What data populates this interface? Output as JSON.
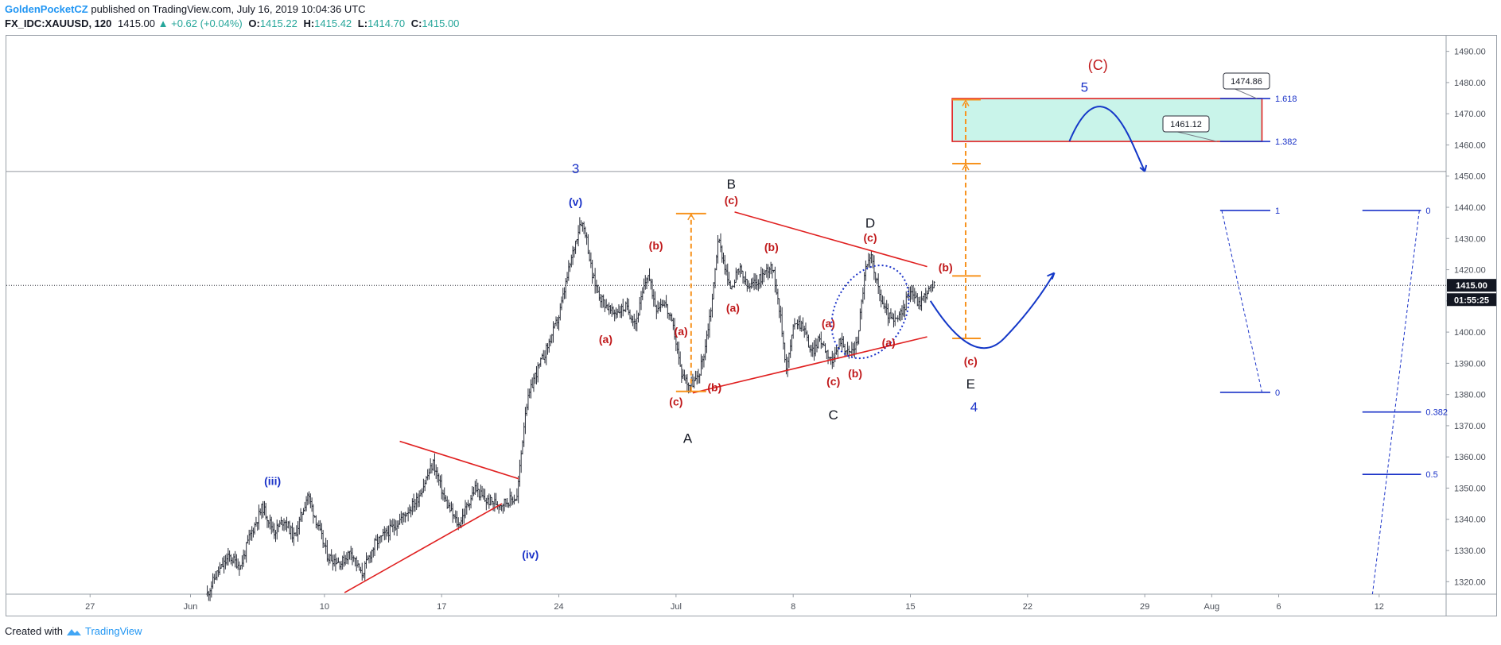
{
  "header": {
    "author": "GoldenPocketCZ",
    "published": "published on TradingView.com, July 16, 2019 10:04:36 UTC",
    "symbol": "FX_IDC:XAUUSD, 120",
    "last": "1415.00",
    "change": "+0.62 (+0.04%)",
    "ohlc": {
      "o_label": "O:",
      "o": "1415.22",
      "h_label": "H:",
      "h": "1415.42",
      "l_label": "L:",
      "l": "1414.70",
      "c_label": "C:",
      "c": "1415.00"
    }
  },
  "footer": {
    "created_with": "Created with",
    "brand": "TradingView"
  },
  "chart_data": {
    "type": "candlestick",
    "instrument": "FX_IDC:XAUUSD",
    "timeframe": "120",
    "y_axis": {
      "ylim": [
        1316,
        1495
      ],
      "ticks": [
        1320,
        1330,
        1340,
        1350,
        1360,
        1370,
        1380,
        1390,
        1400,
        1410,
        1420,
        1430,
        1440,
        1450,
        1460,
        1470,
        1480,
        1490
      ],
      "tick_labels": [
        "1320.00",
        "1330.00",
        "1340.00",
        "1350.00",
        "1360.00",
        "1370.00",
        "1380.00",
        "1390.00",
        "1400.00",
        "1410.00",
        "1420.00",
        "1430.00",
        "1440.00",
        "1450.00",
        "1460.00",
        "1470.00",
        "1480.00",
        "1490.00"
      ]
    },
    "x_axis": {
      "start": "2019-05-22",
      "xlim_days": [
        0,
        86
      ],
      "ticks": [
        {
          "day": 5,
          "label": "27"
        },
        {
          "day": 11,
          "label": "Jun"
        },
        {
          "day": 19,
          "label": "10"
        },
        {
          "day": 26,
          "label": "17"
        },
        {
          "day": 33,
          "label": "24"
        },
        {
          "day": 40,
          "label": "Jul"
        },
        {
          "day": 47,
          "label": "8"
        },
        {
          "day": 54,
          "label": "15"
        },
        {
          "day": 61,
          "label": "22"
        },
        {
          "day": 68,
          "label": "29"
        },
        {
          "day": 72,
          "label": "Aug"
        },
        {
          "day": 76,
          "label": "6"
        },
        {
          "day": 82,
          "label": "12"
        }
      ]
    },
    "price_anchors": [
      [
        12.0,
        1316
      ],
      [
        12.5,
        1322
      ],
      [
        13.3,
        1328
      ],
      [
        14.0,
        1325
      ],
      [
        14.5,
        1334
      ],
      [
        15.3,
        1344
      ],
      [
        16.0,
        1336
      ],
      [
        16.6,
        1340
      ],
      [
        17.2,
        1334
      ],
      [
        18.0,
        1348
      ],
      [
        18.6,
        1338
      ],
      [
        19.2,
        1328
      ],
      [
        20.0,
        1326
      ],
      [
        20.6,
        1330
      ],
      [
        21.2,
        1322
      ],
      [
        22.0,
        1332
      ],
      [
        23.2,
        1338
      ],
      [
        24.5,
        1346
      ],
      [
        25.5,
        1358
      ],
      [
        26.2,
        1346
      ],
      [
        27.0,
        1338
      ],
      [
        28.0,
        1350
      ],
      [
        28.6,
        1346
      ],
      [
        29.5,
        1345
      ],
      [
        30.5,
        1347
      ],
      [
        31.0,
        1375
      ],
      [
        31.5,
        1385
      ],
      [
        32.3,
        1395
      ],
      [
        33.0,
        1405
      ],
      [
        33.6,
        1420
      ],
      [
        34.3,
        1436
      ],
      [
        34.6,
        1432
      ],
      [
        35.0,
        1418
      ],
      [
        35.5,
        1411
      ],
      [
        36.2,
        1406
      ],
      [
        37.0,
        1408
      ],
      [
        37.6,
        1403
      ],
      [
        38.3,
        1419
      ],
      [
        38.8,
        1408
      ],
      [
        39.3,
        1410
      ],
      [
        39.9,
        1400
      ],
      [
        40.3,
        1387
      ],
      [
        40.8,
        1383
      ],
      [
        41.3,
        1385
      ],
      [
        41.7,
        1394
      ],
      [
        42.2,
        1412
      ],
      [
        42.5,
        1430
      ],
      [
        42.8,
        1424
      ],
      [
        43.2,
        1414
      ],
      [
        43.8,
        1420
      ],
      [
        44.3,
        1414
      ],
      [
        45.0,
        1417
      ],
      [
        45.7,
        1422
      ],
      [
        46.1,
        1411
      ],
      [
        46.6,
        1388
      ],
      [
        47.1,
        1404
      ],
      [
        47.6,
        1402
      ],
      [
        48.1,
        1393
      ],
      [
        48.6,
        1398
      ],
      [
        49.0,
        1394
      ],
      [
        49.4,
        1390
      ],
      [
        49.8,
        1398
      ],
      [
        50.3,
        1393
      ],
      [
        50.8,
        1396
      ],
      [
        51.3,
        1420
      ],
      [
        51.7,
        1424
      ],
      [
        52.1,
        1413
      ],
      [
        52.5,
        1407
      ],
      [
        53.0,
        1403
      ],
      [
        53.5,
        1406
      ],
      [
        54.0,
        1414
      ],
      [
        54.5,
        1409
      ],
      [
        55.0,
        1413
      ],
      [
        55.5,
        1415
      ]
    ],
    "horizontal_lines": [
      {
        "price": 1451.5,
        "style": "solid",
        "color": "#787b86"
      },
      {
        "price": 1415.0,
        "style": "dotted",
        "color": "#131722"
      }
    ],
    "price_labels": [
      {
        "text": "1415.00",
        "price": 1415.0
      },
      {
        "text": "01:55:25",
        "price": 1410.4
      }
    ],
    "trendlines": [
      {
        "x1": 41.0,
        "y1": 1380.5,
        "x2": 55.0,
        "y2": 1398.5,
        "color": "#e02020"
      },
      {
        "x1": 43.5,
        "y1": 1438.5,
        "x2": 55.0,
        "y2": 1421.0,
        "color": "#e02020"
      },
      {
        "x1": 23.5,
        "y1": 1365.0,
        "x2": 30.6,
        "y2": 1353.0,
        "color": "#e02020"
      },
      {
        "x1": 20.2,
        "y1": 1316.5,
        "x2": 29.6,
        "y2": 1345.0,
        "color": "#e02020"
      }
    ],
    "target_box": {
      "x1": 56.5,
      "x2": 75.0,
      "top": 1474.86,
      "bottom": 1461.12,
      "fill": "#c9f4ea",
      "border": "#e02020"
    },
    "callouts": [
      {
        "text": "1474.86",
        "price": 1474.86
      },
      {
        "text": "1461.12",
        "price": 1461.12
      }
    ],
    "fib_extension": {
      "x1": 72.5,
      "x2": 75.5,
      "levels": [
        {
          "label": "1.618",
          "price": 1474.86
        },
        {
          "label": "1.382",
          "price": 1461.12
        }
      ]
    },
    "fib_tool_1": {
      "x1": 72.5,
      "x2": 75.5,
      "levels": [
        {
          "label": "1",
          "price": 1439.0
        },
        {
          "label": "0",
          "price": 1380.7
        }
      ]
    },
    "fib_tool_2": {
      "x1": 81.0,
      "x2": 84.5,
      "levels": [
        {
          "label": "0",
          "price": 1439.0
        },
        {
          "label": "0.382",
          "price": 1374.4
        },
        {
          "label": "0.5",
          "price": 1354.4
        }
      ]
    },
    "wave_labels": [
      {
        "text": "(C)",
        "day": 65.2,
        "price": 1484.0,
        "color": "#c0181a",
        "size": 18
      },
      {
        "text": "5",
        "day": 64.4,
        "price": 1477.0,
        "color": "#1a32c8",
        "size": 17
      },
      {
        "text": "3",
        "day": 34.0,
        "price": 1451.0,
        "color": "#1a32c8",
        "size": 17
      },
      {
        "text": "(v)",
        "day": 34.0,
        "price": 1440.5,
        "color": "#1a32c8",
        "size": 14,
        "bold": true
      },
      {
        "text": "B",
        "day": 43.3,
        "price": 1446.0,
        "color": "#131722",
        "size": 17
      },
      {
        "text": "(c)",
        "day": 43.3,
        "price": 1441.0,
        "color": "#c0181a",
        "size": 14,
        "bold": true
      },
      {
        "text": "D",
        "day": 51.6,
        "price": 1433.5,
        "color": "#131722",
        "size": 17
      },
      {
        "text": "(c)",
        "day": 51.6,
        "price": 1429.0,
        "color": "#c0181a",
        "size": 14,
        "bold": true
      },
      {
        "text": "(b)",
        "day": 38.8,
        "price": 1426.5,
        "color": "#c0181a",
        "size": 14,
        "bold": true
      },
      {
        "text": "(b)",
        "day": 45.7,
        "price": 1426.0,
        "color": "#c0181a",
        "size": 14,
        "bold": true
      },
      {
        "text": "(b)",
        "day": 56.1,
        "price": 1419.5,
        "color": "#c0181a",
        "size": 14,
        "bold": true
      },
      {
        "text": "(a)",
        "day": 43.4,
        "price": 1406.5,
        "color": "#c0181a",
        "size": 14,
        "bold": true
      },
      {
        "text": "(a)",
        "day": 35.8,
        "price": 1396.5,
        "color": "#c0181a",
        "size": 14,
        "bold": true
      },
      {
        "text": "(a)",
        "day": 40.3,
        "price": 1399.0,
        "color": "#c0181a",
        "size": 14,
        "bold": true
      },
      {
        "text": "(a)",
        "day": 49.1,
        "price": 1401.5,
        "color": "#c0181a",
        "size": 14,
        "bold": true
      },
      {
        "text": "(a)",
        "day": 52.7,
        "price": 1395.5,
        "color": "#c0181a",
        "size": 14,
        "bold": true
      },
      {
        "text": "(c)",
        "day": 40.0,
        "price": 1376.5,
        "color": "#c0181a",
        "size": 14,
        "bold": true
      },
      {
        "text": "(b)",
        "day": 42.3,
        "price": 1381.0,
        "color": "#c0181a",
        "size": 14,
        "bold": true
      },
      {
        "text": "(c)",
        "day": 49.4,
        "price": 1383.0,
        "color": "#c0181a",
        "size": 14,
        "bold": true
      },
      {
        "text": "(b)",
        "day": 50.7,
        "price": 1385.5,
        "color": "#c0181a",
        "size": 14,
        "bold": true
      },
      {
        "text": "(c)",
        "day": 57.6,
        "price": 1389.5,
        "color": "#c0181a",
        "size": 14,
        "bold": true
      },
      {
        "text": "E",
        "day": 57.6,
        "price": 1382.0,
        "color": "#131722",
        "size": 17
      },
      {
        "text": "4",
        "day": 57.8,
        "price": 1374.5,
        "color": "#1a32c8",
        "size": 17
      },
      {
        "text": "C",
        "day": 49.4,
        "price": 1372.0,
        "color": "#131722",
        "size": 17
      },
      {
        "text": "A",
        "day": 40.7,
        "price": 1364.5,
        "color": "#131722",
        "size": 17
      },
      {
        "text": "(iii)",
        "day": 15.9,
        "price": 1351.0,
        "color": "#1a32c8",
        "size": 14,
        "bold": true
      },
      {
        "text": "(iv)",
        "day": 31.3,
        "price": 1327.5,
        "color": "#1a32c8",
        "size": 14,
        "bold": true
      }
    ]
  }
}
